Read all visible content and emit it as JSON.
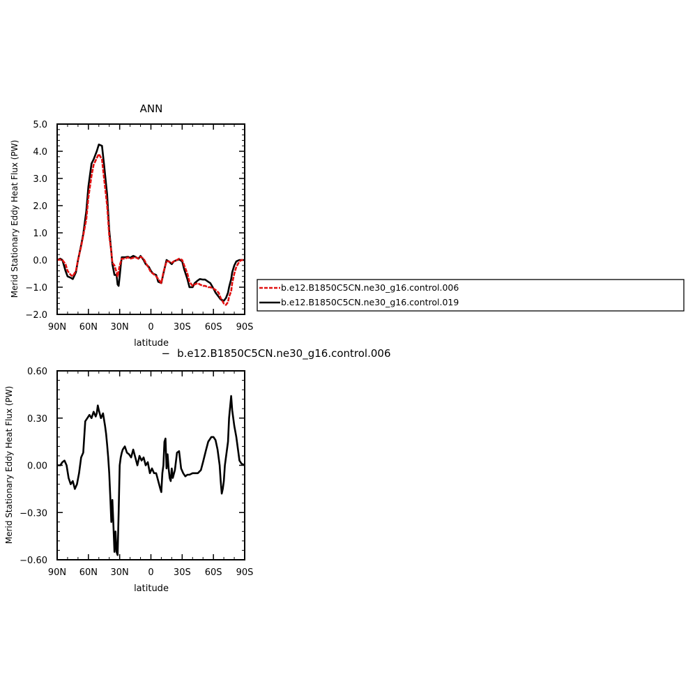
{
  "colors": {
    "series1": "#e01010",
    "series2": "#000000",
    "axis": "#000000"
  },
  "chart_data": [
    {
      "type": "line",
      "title": "ANN",
      "xlabel": "latitude",
      "ylabel": "Merid Stationary Eddy Heat Flux (PW)",
      "xlim": [
        90,
        -90
      ],
      "ylim": [
        -2.0,
        5.0
      ],
      "xticks": [
        {
          "v": 90,
          "label": "90N"
        },
        {
          "v": 60,
          "label": "60N"
        },
        {
          "v": 30,
          "label": "30N"
        },
        {
          "v": 0,
          "label": "0"
        },
        {
          "v": -30,
          "label": "30S"
        },
        {
          "v": -60,
          "label": "60S"
        },
        {
          "v": -90,
          "label": "90S"
        }
      ],
      "yticks": [
        {
          "v": 5.0,
          "label": "5.0"
        },
        {
          "v": 4.0,
          "label": "4.0"
        },
        {
          "v": 3.0,
          "label": "3.0"
        },
        {
          "v": 2.0,
          "label": "2.0"
        },
        {
          "v": 1.0,
          "label": "1.0"
        },
        {
          "v": 0.0,
          "label": "0.0"
        },
        {
          "v": -1.0,
          "label": "−1.0"
        },
        {
          "v": -2.0,
          "label": "−2.0"
        }
      ],
      "legend": {
        "placement": "right",
        "entries": [
          {
            "name": "b.e12.B1850C5CN.ne30_g16.control.006",
            "color": "#e01010",
            "dashed": true
          },
          {
            "name": "b.e12.B1850C5CN.ne30_g16.control.019",
            "color": "#000000",
            "dashed": false
          }
        ]
      },
      "series": [
        {
          "name": "b.e12.B1850C5CN.ne30_g16.control.006",
          "color": "#e01010",
          "dashed": true,
          "x": [
            90,
            87,
            85,
            82,
            80,
            77,
            75,
            72,
            70,
            67,
            65,
            62,
            60,
            57,
            55,
            52,
            50,
            47,
            45,
            42,
            40,
            38,
            37,
            35,
            33,
            32,
            30,
            28,
            25,
            22,
            20,
            17,
            15,
            12,
            10,
            7,
            5,
            2,
            0,
            -2,
            -5,
            -7,
            -10,
            -12,
            -15,
            -17,
            -20,
            -22,
            -25,
            -27,
            -30,
            -32,
            -35,
            -37,
            -40,
            -42,
            -45,
            -47,
            -50,
            -52,
            -55,
            -57,
            -60,
            -62,
            -65,
            -67,
            -70,
            -72,
            -74,
            -75,
            -77,
            -78,
            -80,
            -82,
            -85,
            -87,
            -90
          ],
          "y": [
            0.0,
            0.02,
            0.0,
            -0.15,
            -0.4,
            -0.55,
            -0.6,
            -0.4,
            0.0,
            0.5,
            0.9,
            1.5,
            2.3,
            3.1,
            3.5,
            3.75,
            3.9,
            3.7,
            3.0,
            2.0,
            0.9,
            0.3,
            -0.1,
            -0.2,
            -0.45,
            -0.6,
            -0.2,
            0.05,
            0.05,
            0.1,
            0.05,
            0.08,
            0.1,
            0.05,
            0.12,
            0.05,
            -0.1,
            -0.3,
            -0.45,
            -0.5,
            -0.6,
            -0.7,
            -0.85,
            -0.45,
            -0.05,
            -0.05,
            -0.1,
            -0.05,
            0.0,
            0.05,
            0.0,
            -0.2,
            -0.5,
            -0.8,
            -0.95,
            -0.9,
            -0.85,
            -0.9,
            -0.95,
            -0.95,
            -1.0,
            -1.0,
            -1.05,
            -1.1,
            -1.2,
            -1.4,
            -1.6,
            -1.65,
            -1.55,
            -1.35,
            -1.15,
            -0.85,
            -0.5,
            -0.25,
            -0.05,
            0.0,
            0.0
          ]
        },
        {
          "name": "b.e12.B1850C5CN.ne30_g16.control.019",
          "color": "#000000",
          "dashed": false,
          "x": [
            90,
            87,
            85,
            82,
            80,
            77,
            75,
            72,
            70,
            67,
            65,
            62,
            60,
            57,
            55,
            52,
            50,
            47,
            45,
            42,
            40,
            38,
            37,
            35,
            33,
            32,
            31,
            30,
            29,
            28,
            25,
            22,
            20,
            17,
            15,
            12,
            10,
            7,
            5,
            2,
            0,
            -2,
            -5,
            -7,
            -10,
            -12,
            -15,
            -17,
            -20,
            -22,
            -25,
            -27,
            -30,
            -32,
            -35,
            -37,
            -40,
            -42,
            -45,
            -47,
            -50,
            -52,
            -55,
            -57,
            -60,
            -62,
            -65,
            -67,
            -70,
            -72,
            -74,
            -75,
            -77,
            -78,
            -80,
            -82,
            -85,
            -87,
            -90
          ],
          "y": [
            0.0,
            0.05,
            0.0,
            -0.4,
            -0.6,
            -0.65,
            -0.7,
            -0.45,
            0.0,
            0.55,
            0.95,
            1.8,
            2.7,
            3.55,
            3.7,
            4.0,
            4.25,
            4.2,
            3.5,
            2.4,
            1.1,
            0.3,
            -0.15,
            -0.55,
            -0.55,
            -0.9,
            -0.95,
            -0.6,
            -0.2,
            0.1,
            0.1,
            0.12,
            0.08,
            0.15,
            0.12,
            0.05,
            0.15,
            0.0,
            -0.15,
            -0.25,
            -0.4,
            -0.5,
            -0.55,
            -0.8,
            -0.85,
            -0.5,
            0.0,
            -0.05,
            -0.15,
            -0.05,
            0.0,
            0.02,
            -0.05,
            -0.35,
            -0.7,
            -1.0,
            -1.0,
            -0.85,
            -0.75,
            -0.7,
            -0.72,
            -0.72,
            -0.8,
            -0.85,
            -1.05,
            -1.2,
            -1.35,
            -1.45,
            -1.5,
            -1.4,
            -1.2,
            -1.0,
            -0.7,
            -0.45,
            -0.2,
            -0.05,
            0.0,
            0.0,
            0.0
          ]
        }
      ]
    },
    {
      "type": "line",
      "title": "b.e12.B1850C5CN.ne30_g16.control.006",
      "title_prefix": "−",
      "xlabel": "latitude",
      "ylabel": "Merid Stationary Eddy Heat Flux (PW)",
      "xlim": [
        90,
        -90
      ],
      "ylim": [
        -0.6,
        0.6
      ],
      "xticks": [
        {
          "v": 90,
          "label": "90N"
        },
        {
          "v": 60,
          "label": "60N"
        },
        {
          "v": 30,
          "label": "30N"
        },
        {
          "v": 0,
          "label": "0"
        },
        {
          "v": -30,
          "label": "30S"
        },
        {
          "v": -60,
          "label": "60S"
        },
        {
          "v": -90,
          "label": "90S"
        }
      ],
      "yticks": [
        {
          "v": 0.6,
          "label": "0.60"
        },
        {
          "v": 0.3,
          "label": "0.30"
        },
        {
          "v": 0.0,
          "label": "0.00"
        },
        {
          "v": -0.3,
          "label": "−0.30"
        },
        {
          "v": -0.6,
          "label": "−0.60"
        }
      ],
      "series": [
        {
          "name": "",
          "color": "#000000",
          "dashed": false,
          "x": [
            90,
            87,
            85,
            83,
            81,
            79,
            77,
            75,
            73,
            71,
            69,
            67,
            65,
            63,
            61,
            59,
            57,
            55,
            53,
            52,
            51,
            50,
            48,
            46,
            44,
            43,
            42,
            41,
            40,
            39,
            38,
            37,
            36,
            35,
            34,
            33,
            32,
            31,
            30,
            29,
            28,
            27,
            25,
            23,
            21,
            19,
            17,
            15,
            13,
            11,
            9,
            7,
            5,
            3,
            1,
            -1,
            -3,
            -5,
            -7,
            -9,
            -10,
            -11,
            -12,
            -13,
            -14,
            -15,
            -16,
            -17,
            -18,
            -19,
            -20,
            -21,
            -23,
            -25,
            -27,
            -29,
            -31,
            -33,
            -35,
            -37,
            -40,
            -42,
            -45,
            -48,
            -50,
            -53,
            -55,
            -58,
            -60,
            -62,
            -64,
            -66,
            -67,
            -68,
            -69,
            -70,
            -71,
            -73,
            -74,
            -75,
            -77,
            -78,
            -80,
            -82,
            -85,
            -87,
            -90
          ],
          "y": [
            0.0,
            0.0,
            0.02,
            0.03,
            0.0,
            -0.08,
            -0.12,
            -0.1,
            -0.15,
            -0.12,
            -0.05,
            0.05,
            0.08,
            0.28,
            0.3,
            0.32,
            0.3,
            0.34,
            0.31,
            0.33,
            0.38,
            0.35,
            0.3,
            0.33,
            0.25,
            0.2,
            0.13,
            0.05,
            -0.05,
            -0.2,
            -0.36,
            -0.22,
            -0.38,
            -0.55,
            -0.42,
            -0.55,
            -0.57,
            -0.3,
            0.0,
            0.05,
            0.08,
            0.1,
            0.12,
            0.08,
            0.07,
            0.05,
            0.1,
            0.05,
            0.0,
            0.06,
            0.03,
            0.05,
            0.0,
            0.02,
            -0.05,
            -0.02,
            -0.05,
            -0.05,
            -0.1,
            -0.15,
            -0.17,
            -0.05,
            0.0,
            0.15,
            0.17,
            -0.02,
            0.07,
            -0.02,
            -0.08,
            -0.1,
            -0.02,
            -0.08,
            -0.03,
            0.08,
            0.09,
            -0.02,
            -0.05,
            -0.07,
            -0.06,
            -0.06,
            -0.05,
            -0.05,
            -0.05,
            -0.03,
            0.02,
            0.1,
            0.15,
            0.18,
            0.18,
            0.16,
            0.1,
            0.0,
            -0.1,
            -0.18,
            -0.15,
            -0.1,
            0.0,
            0.1,
            0.15,
            0.3,
            0.44,
            0.35,
            0.25,
            0.18,
            0.03,
            0.01,
            0.0
          ]
        }
      ]
    }
  ]
}
